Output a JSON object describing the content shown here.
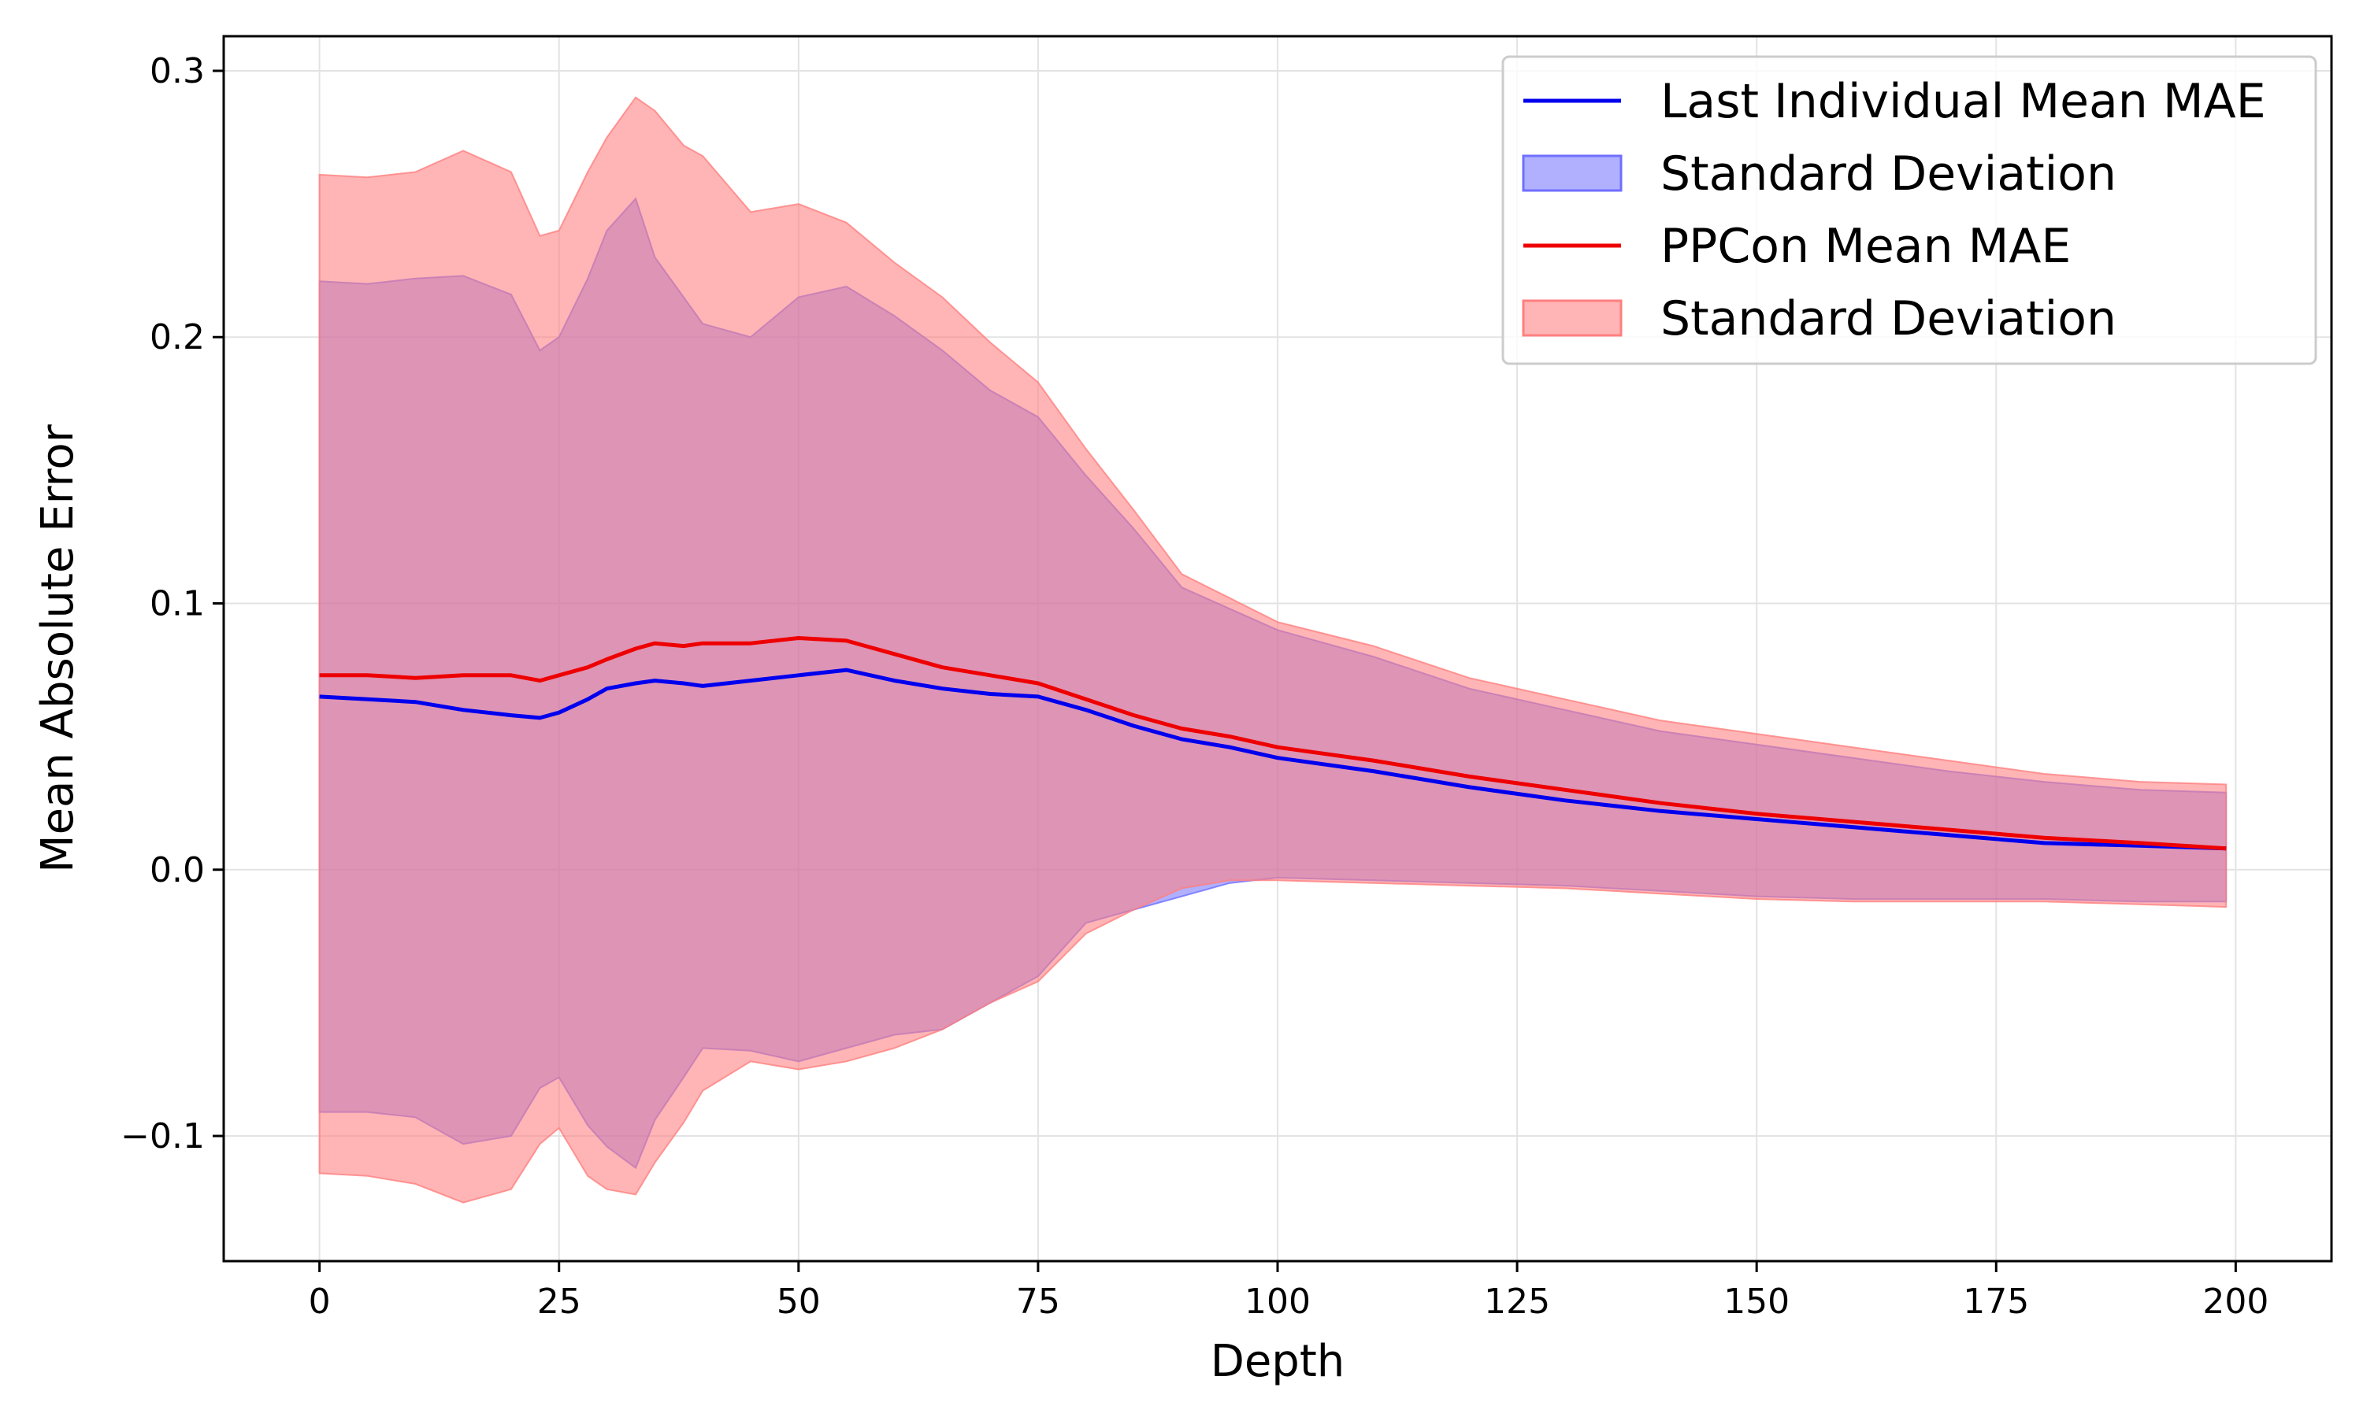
{
  "colors": {
    "last_individual": "#0000ee",
    "last_individual_band": "#6f6fff",
    "ppcon": "#ee0000",
    "ppcon_band": "#ff7f7f",
    "grid": "#e3e3e3",
    "axis": "#000000"
  },
  "chart_data": {
    "type": "line",
    "title": "",
    "xlabel": "Depth",
    "ylabel": "Mean Absolute Error",
    "xlim": [
      -10,
      210
    ],
    "ylim": [
      -0.147,
      0.313
    ],
    "xticks": [
      0,
      25,
      50,
      75,
      100,
      125,
      150,
      175,
      200
    ],
    "yticks": [
      -0.1,
      0.0,
      0.1,
      0.2,
      0.3
    ],
    "ytick_labels": [
      "−0.1",
      "0.0",
      "0.1",
      "0.2",
      "0.3"
    ],
    "grid": true,
    "legend_position": "top-right",
    "legend": [
      "Last Individual Mean MAE",
      "Standard Deviation",
      "PPCon Mean MAE",
      "Standard Deviation"
    ],
    "x": [
      0,
      5,
      10,
      15,
      20,
      23,
      25,
      28,
      30,
      33,
      35,
      38,
      40,
      45,
      50,
      55,
      60,
      65,
      70,
      75,
      80,
      85,
      90,
      95,
      100,
      110,
      120,
      130,
      140,
      150,
      160,
      170,
      180,
      190,
      199
    ],
    "series": [
      {
        "name": "Last Individual Mean MAE",
        "mean": [
          0.065,
          0.064,
          0.063,
          0.06,
          0.058,
          0.057,
          0.059,
          0.064,
          0.068,
          0.07,
          0.071,
          0.07,
          0.069,
          0.071,
          0.073,
          0.075,
          0.071,
          0.068,
          0.066,
          0.065,
          0.06,
          0.054,
          0.049,
          0.046,
          0.042,
          0.037,
          0.031,
          0.026,
          0.022,
          0.019,
          0.016,
          0.013,
          0.01,
          0.009,
          0.008
        ],
        "upper": [
          0.221,
          0.22,
          0.222,
          0.223,
          0.216,
          0.195,
          0.2,
          0.222,
          0.24,
          0.252,
          0.23,
          0.215,
          0.205,
          0.2,
          0.215,
          0.219,
          0.208,
          0.195,
          0.18,
          0.17,
          0.148,
          0.128,
          0.106,
          0.098,
          0.09,
          0.08,
          0.068,
          0.06,
          0.052,
          0.047,
          0.042,
          0.037,
          0.033,
          0.03,
          0.029
        ],
        "lower": [
          -0.091,
          -0.091,
          -0.093,
          -0.103,
          -0.1,
          -0.082,
          -0.078,
          -0.096,
          -0.104,
          -0.112,
          -0.094,
          -0.078,
          -0.067,
          -0.068,
          -0.072,
          -0.067,
          -0.062,
          -0.06,
          -0.05,
          -0.04,
          -0.02,
          -0.015,
          -0.01,
          -0.005,
          -0.003,
          -0.004,
          -0.005,
          -0.006,
          -0.008,
          -0.01,
          -0.011,
          -0.011,
          -0.011,
          -0.012,
          -0.012
        ]
      },
      {
        "name": "PPCon Mean MAE",
        "mean": [
          0.073,
          0.073,
          0.072,
          0.073,
          0.073,
          0.071,
          0.073,
          0.076,
          0.079,
          0.083,
          0.085,
          0.084,
          0.085,
          0.085,
          0.087,
          0.086,
          0.081,
          0.076,
          0.073,
          0.07,
          0.064,
          0.058,
          0.053,
          0.05,
          0.046,
          0.041,
          0.035,
          0.03,
          0.025,
          0.021,
          0.018,
          0.015,
          0.012,
          0.01,
          0.008
        ],
        "upper": [
          0.261,
          0.26,
          0.262,
          0.27,
          0.262,
          0.238,
          0.24,
          0.262,
          0.275,
          0.29,
          0.285,
          0.272,
          0.268,
          0.247,
          0.25,
          0.243,
          0.228,
          0.215,
          0.198,
          0.183,
          0.158,
          0.135,
          0.111,
          0.102,
          0.093,
          0.084,
          0.072,
          0.064,
          0.056,
          0.051,
          0.046,
          0.041,
          0.036,
          0.033,
          0.032
        ],
        "lower": [
          -0.114,
          -0.115,
          -0.118,
          -0.125,
          -0.12,
          -0.103,
          -0.097,
          -0.115,
          -0.12,
          -0.122,
          -0.11,
          -0.095,
          -0.083,
          -0.072,
          -0.075,
          -0.072,
          -0.067,
          -0.06,
          -0.05,
          -0.042,
          -0.024,
          -0.015,
          -0.007,
          -0.004,
          -0.004,
          -0.005,
          -0.006,
          -0.007,
          -0.009,
          -0.011,
          -0.012,
          -0.012,
          -0.012,
          -0.013,
          -0.014
        ]
      }
    ]
  }
}
